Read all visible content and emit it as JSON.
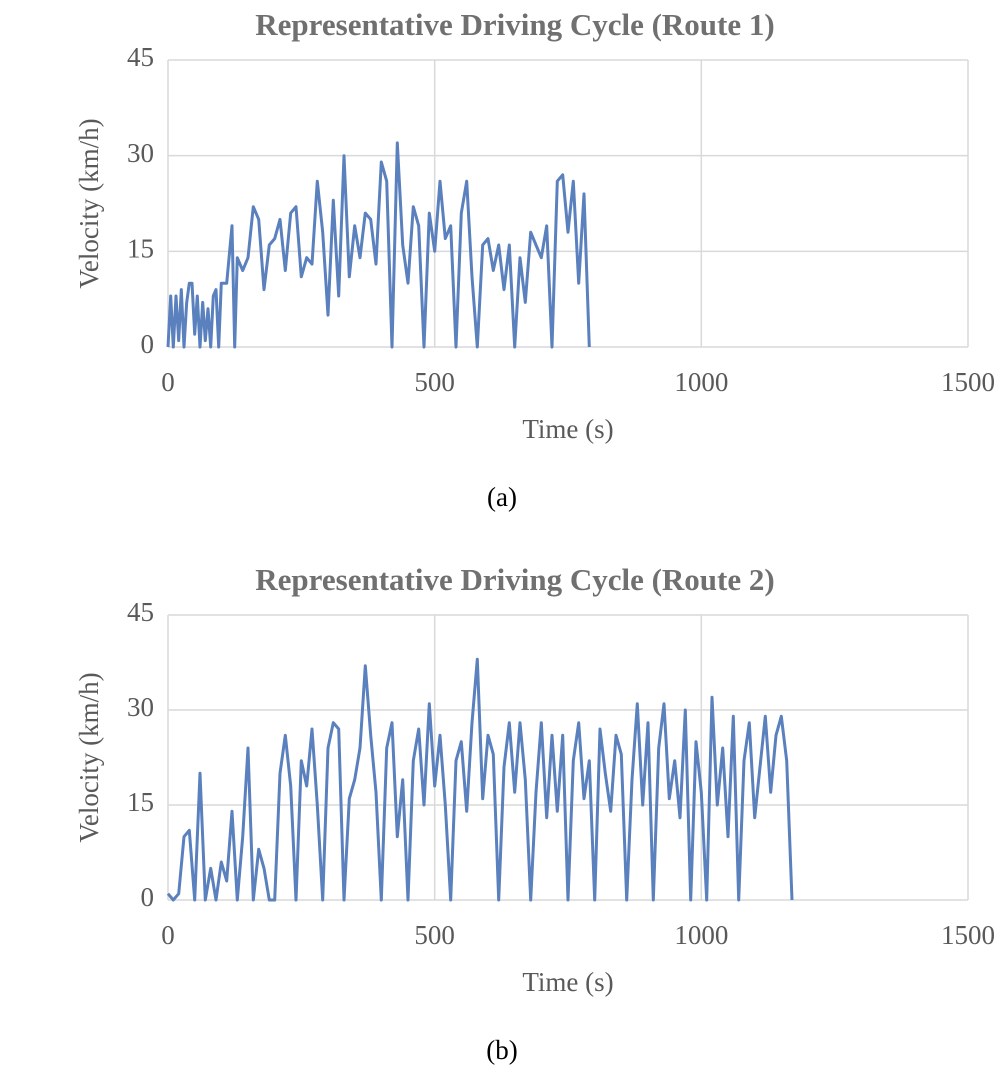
{
  "chart_data": [
    {
      "type": "line",
      "title": "Representative Driving Cycle (Route 1)",
      "xlabel": "Time (s)",
      "ylabel": "Velocity (km/h)",
      "caption": "(a)",
      "color": "#5a80bd",
      "grid": true,
      "xlim": [
        0,
        1500
      ],
      "xticks": [
        0,
        500,
        1000,
        1500
      ],
      "ylim": [
        0,
        45
      ],
      "yticks": [
        0,
        15,
        30,
        45
      ],
      "x": [
        0,
        5,
        10,
        15,
        20,
        25,
        30,
        35,
        40,
        45,
        50,
        55,
        60,
        65,
        70,
        75,
        80,
        85,
        90,
        95,
        100,
        110,
        120,
        125,
        130,
        140,
        150,
        160,
        170,
        180,
        190,
        200,
        210,
        220,
        230,
        240,
        250,
        260,
        270,
        280,
        290,
        300,
        310,
        320,
        330,
        340,
        350,
        360,
        370,
        380,
        390,
        400,
        410,
        420,
        430,
        440,
        450,
        460,
        470,
        480,
        490,
        500,
        510,
        520,
        530,
        540,
        550,
        560,
        570,
        580,
        590,
        600,
        610,
        620,
        630,
        640,
        650,
        660,
        670,
        680,
        690,
        700,
        710,
        720,
        730,
        740,
        750,
        760,
        770,
        780,
        790
      ],
      "values": [
        0,
        8,
        0,
        8,
        1,
        9,
        0,
        7,
        10,
        10,
        2,
        8,
        0,
        7,
        1,
        6,
        0,
        8,
        9,
        0,
        10,
        10,
        19,
        0,
        14,
        12,
        14,
        22,
        20,
        9,
        16,
        17,
        20,
        12,
        21,
        22,
        11,
        14,
        13,
        26,
        18,
        5,
        23,
        8,
        30,
        11,
        19,
        14,
        21,
        20,
        13,
        29,
        26,
        0,
        32,
        16,
        10,
        22,
        19,
        0,
        21,
        15,
        26,
        17,
        19,
        0,
        21,
        26,
        11,
        0,
        16,
        17,
        12,
        16,
        9,
        16,
        0,
        14,
        7,
        18,
        16,
        14,
        19,
        0,
        26,
        27,
        18,
        26,
        10,
        24,
        0
      ]
    },
    {
      "type": "line",
      "title": "Representative Driving Cycle (Route 2)",
      "xlabel": "Time (s)",
      "ylabel": "Velocity (km/h)",
      "caption": "(b)",
      "color": "#5a80bd",
      "grid": true,
      "xlim": [
        0,
        1500
      ],
      "xticks": [
        0,
        500,
        1000,
        1500
      ],
      "ylim": [
        0,
        45
      ],
      "yticks": [
        0,
        15,
        30,
        45
      ],
      "x": [
        0,
        10,
        20,
        30,
        40,
        50,
        60,
        70,
        80,
        90,
        100,
        110,
        120,
        130,
        140,
        150,
        160,
        170,
        180,
        190,
        200,
        210,
        220,
        230,
        240,
        250,
        260,
        270,
        280,
        290,
        300,
        310,
        320,
        330,
        340,
        350,
        360,
        370,
        380,
        390,
        400,
        410,
        420,
        430,
        440,
        450,
        460,
        470,
        480,
        490,
        500,
        510,
        520,
        530,
        540,
        550,
        560,
        570,
        580,
        590,
        600,
        610,
        620,
        630,
        640,
        650,
        660,
        670,
        680,
        690,
        700,
        710,
        720,
        730,
        740,
        750,
        760,
        770,
        780,
        790,
        800,
        810,
        820,
        830,
        840,
        850,
        860,
        870,
        880,
        890,
        900,
        910,
        920,
        930,
        940,
        950,
        960,
        970,
        980,
        990,
        1000,
        1010,
        1020,
        1030,
        1040,
        1050,
        1060,
        1070,
        1080,
        1090,
        1100,
        1110,
        1120,
        1130,
        1140,
        1150,
        1160,
        1170
      ],
      "values": [
        1,
        0,
        1,
        10,
        11,
        0,
        20,
        0,
        5,
        0,
        6,
        3,
        14,
        0,
        10,
        24,
        0,
        8,
        5,
        0,
        0,
        20,
        26,
        18,
        0,
        22,
        18,
        27,
        15,
        0,
        24,
        28,
        27,
        0,
        16,
        19,
        24,
        37,
        26,
        17,
        0,
        24,
        28,
        10,
        19,
        0,
        22,
        27,
        15,
        31,
        18,
        26,
        15,
        0,
        22,
        25,
        14,
        28,
        38,
        16,
        26,
        23,
        0,
        21,
        28,
        17,
        28,
        19,
        0,
        17,
        28,
        13,
        26,
        14,
        26,
        0,
        22,
        28,
        16,
        22,
        0,
        27,
        20,
        14,
        26,
        23,
        0,
        19,
        31,
        15,
        28,
        0,
        24,
        31,
        16,
        22,
        13,
        30,
        0,
        25,
        17,
        0,
        32,
        15,
        24,
        10,
        29,
        0,
        22,
        28,
        13,
        21,
        29,
        17,
        26,
        29,
        22,
        0
      ]
    }
  ]
}
